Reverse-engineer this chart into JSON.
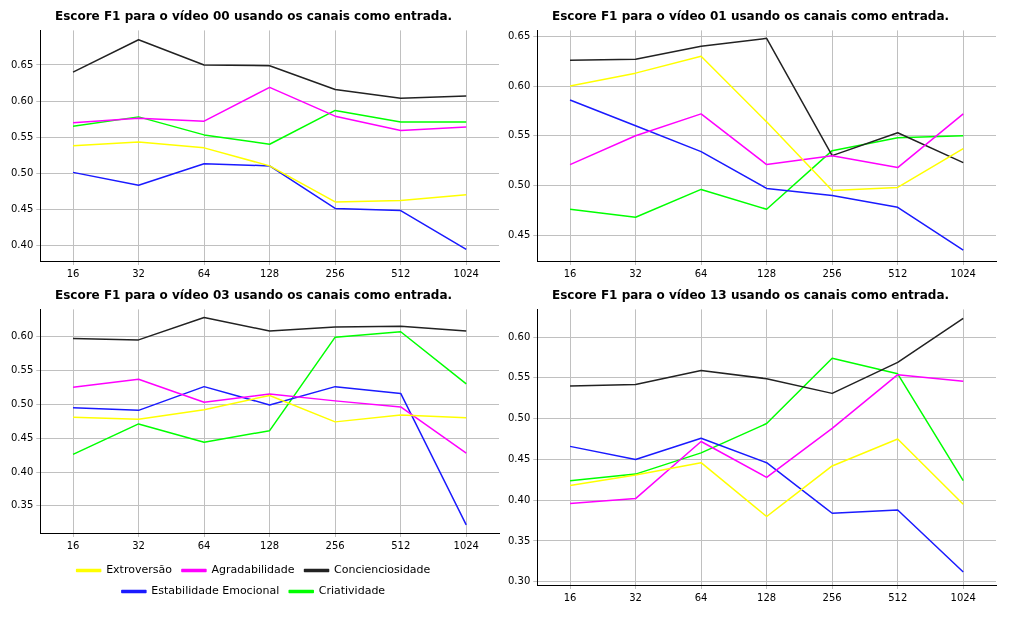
{
  "chart_data": [
    {
      "type": "line",
      "title": "Escore F1 para o vídeo 00 usando os canais como entrada.",
      "categories": [
        "16",
        "32",
        "64",
        "128",
        "256",
        "512",
        "1024"
      ],
      "ylim": [
        0.378,
        0.698
      ],
      "yticks": [
        {
          "value": 0.4,
          "label": "0.40"
        },
        0.45,
        {
          "value": 0.5,
          "label": "0.50"
        },
        0.55,
        {
          "value": 0.6,
          "label": "0.60"
        },
        0.65
      ],
      "grid": true,
      "legend": false,
      "series": [
        {
          "color": "#ffff00",
          "values": [
            0.538,
            0.543,
            0.535,
            0.51,
            0.46,
            0.462,
            0.47
          ]
        },
        {
          "color": "#ff00ff",
          "values": [
            0.57,
            0.576,
            0.572,
            0.619,
            0.579,
            0.559,
            0.564
          ]
        },
        {
          "color": "#222222",
          "values": [
            0.64,
            0.685,
            0.65,
            0.649,
            0.616,
            0.604,
            0.607
          ]
        },
        {
          "color": "#1a1aff",
          "values": [
            0.501,
            0.483,
            0.513,
            0.51,
            0.451,
            0.448,
            0.394
          ]
        },
        {
          "color": "#00ff00",
          "values": [
            0.565,
            0.578,
            0.553,
            0.54,
            0.587,
            0.571,
            0.571
          ]
        }
      ]
    },
    {
      "type": "line",
      "title": "Escore F1 para o vídeo 01 usando os canais como entrada.",
      "categories": [
        "16",
        "32",
        "64",
        "128",
        "256",
        "512",
        "1024"
      ],
      "ylim": [
        0.424,
        0.656
      ],
      "yticks": [
        0.45,
        {
          "value": 0.5,
          "label": "0.50"
        },
        0.55,
        {
          "value": 0.6,
          "label": "0.60"
        },
        0.65
      ],
      "grid": true,
      "legend": false,
      "series": [
        {
          "color": "#ffff00",
          "values": [
            0.6,
            0.613,
            0.63,
            0.564,
            0.495,
            0.498,
            0.537
          ]
        },
        {
          "color": "#ff00ff",
          "values": [
            0.521,
            0.55,
            0.572,
            0.521,
            0.53,
            0.518,
            0.572
          ]
        },
        {
          "color": "#222222",
          "values": [
            0.626,
            0.627,
            0.64,
            0.648,
            0.53,
            0.553,
            0.523
          ]
        },
        {
          "color": "#1a1aff",
          "values": [
            0.586,
            0.56,
            0.534,
            0.497,
            0.49,
            0.478,
            0.435
          ]
        },
        {
          "color": "#00ff00",
          "values": [
            0.476,
            0.468,
            0.496,
            0.476,
            0.535,
            0.548,
            0.55
          ]
        }
      ]
    },
    {
      "type": "line",
      "title": "Escore F1 para o vídeo 03 usando os canais como entrada.",
      "categories": [
        "16",
        "32",
        "64",
        "128",
        "256",
        "512",
        "1024"
      ],
      "ylim": [
        0.31,
        0.64
      ],
      "yticks": [
        0.35,
        {
          "value": 0.4,
          "label": "0.40"
        },
        0.45,
        {
          "value": 0.5,
          "label": "0.50"
        },
        0.55,
        {
          "value": 0.6,
          "label": "0.60"
        }
      ],
      "grid": true,
      "legend": "bottom",
      "series": [
        {
          "name": "Extroversão",
          "color": "#ffff00",
          "values": [
            0.481,
            0.478,
            0.492,
            0.513,
            0.474,
            0.484,
            0.48
          ]
        },
        {
          "name": "Agradabilidade",
          "color": "#ff00ff",
          "values": [
            0.525,
            0.537,
            0.503,
            0.515,
            0.505,
            0.496,
            0.428
          ]
        },
        {
          "name": "Concienciosidade",
          "color": "#222222",
          "values": [
            0.597,
            0.595,
            0.628,
            0.608,
            0.614,
            0.615,
            0.608
          ]
        },
        {
          "name": "Estabilidade Emocional",
          "color": "#1a1aff",
          "values": [
            0.495,
            0.491,
            0.526,
            0.499,
            0.526,
            0.516,
            0.322
          ]
        },
        {
          "name": "Criatividade",
          "color": "#00ff00",
          "values": [
            0.426,
            0.471,
            0.444,
            0.461,
            0.599,
            0.607,
            0.53
          ]
        }
      ]
    },
    {
      "type": "line",
      "title": "Escore F1 para o vídeo 13 usando os canais como entrada.",
      "categories": [
        "16",
        "32",
        "64",
        "128",
        "256",
        "512",
        "1024"
      ],
      "ylim": [
        0.296,
        0.634
      ],
      "yticks": [
        {
          "value": 0.3,
          "label": "0.30"
        },
        0.35,
        {
          "value": 0.4,
          "label": "0.40"
        },
        0.45,
        {
          "value": 0.5,
          "label": "0.50"
        },
        0.55,
        {
          "value": 0.6,
          "label": "0.60"
        }
      ],
      "grid": true,
      "legend": false,
      "series": [
        {
          "color": "#ffff00",
          "values": [
            0.418,
            0.431,
            0.446,
            0.38,
            0.442,
            0.475,
            0.395
          ]
        },
        {
          "color": "#ff00ff",
          "values": [
            0.396,
            0.402,
            0.472,
            0.428,
            0.488,
            0.554,
            0.546
          ]
        },
        {
          "color": "#222222",
          "values": [
            0.54,
            0.542,
            0.559,
            0.549,
            0.531,
            0.569,
            0.623
          ]
        },
        {
          "color": "#1a1aff",
          "values": [
            0.466,
            0.45,
            0.476,
            0.446,
            0.384,
            0.388,
            0.312
          ]
        },
        {
          "color": "#00ff00",
          "values": [
            0.424,
            0.432,
            0.458,
            0.494,
            0.574,
            0.555,
            0.424
          ]
        }
      ]
    }
  ]
}
